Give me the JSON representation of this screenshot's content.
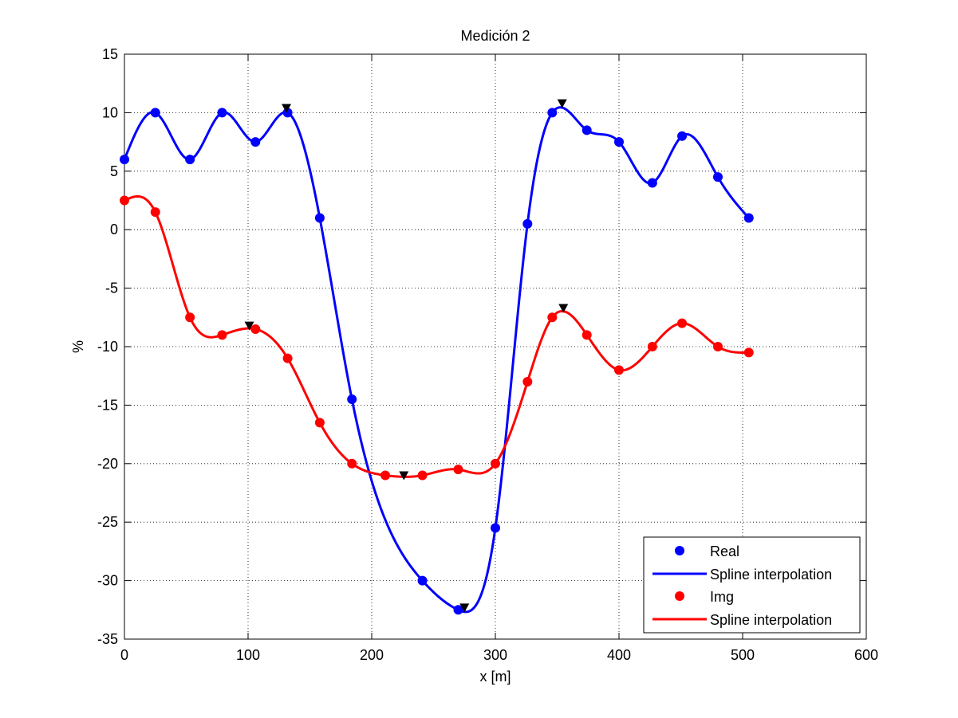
{
  "chart_data": {
    "type": "line",
    "title": "Medición 2",
    "xlabel": "x [m]",
    "ylabel": "%",
    "xlim": [
      0,
      600
    ],
    "ylim": [
      -35,
      15
    ],
    "xticks": [
      0,
      100,
      200,
      300,
      400,
      500,
      600
    ],
    "yticks": [
      -35,
      -30,
      -25,
      -20,
      -15,
      -10,
      -5,
      0,
      5,
      10,
      15
    ],
    "grid": true,
    "legend_position": "bottom-right",
    "colors": {
      "blue": "#0000ff",
      "red": "#ff0000",
      "marker_black": "#000000"
    },
    "series": [
      {
        "name": "Real",
        "kind": "markers",
        "color": "#0000ff",
        "points": [
          [
            0,
            6
          ],
          [
            25,
            10
          ],
          [
            53,
            6
          ],
          [
            79,
            10
          ],
          [
            106,
            7.5
          ],
          [
            132,
            10
          ],
          [
            158,
            1
          ],
          [
            184,
            -14.5
          ],
          [
            241,
            -30
          ],
          [
            270,
            -32.5
          ],
          [
            300,
            -25.5
          ],
          [
            326,
            0.5
          ],
          [
            346,
            10
          ],
          [
            374,
            8.5
          ],
          [
            400,
            7.5
          ],
          [
            427,
            4
          ],
          [
            451,
            8
          ],
          [
            480,
            4.5
          ],
          [
            505,
            1
          ]
        ]
      },
      {
        "name": "Spline interpolation",
        "kind": "spline",
        "color": "#0000ff",
        "points": [
          [
            0,
            6
          ],
          [
            25,
            10
          ],
          [
            53,
            6
          ],
          [
            79,
            10
          ],
          [
            106,
            7.5
          ],
          [
            132,
            10
          ],
          [
            158,
            1
          ],
          [
            184,
            -14.5
          ],
          [
            241,
            -30
          ],
          [
            270,
            -32.5
          ],
          [
            300,
            -25.5
          ],
          [
            326,
            0.5
          ],
          [
            346,
            10
          ],
          [
            374,
            8.5
          ],
          [
            400,
            7.5
          ],
          [
            427,
            4
          ],
          [
            451,
            8
          ],
          [
            480,
            4.5
          ],
          [
            505,
            1
          ]
        ]
      },
      {
        "name": "Img",
        "kind": "markers",
        "color": "#ff0000",
        "points": [
          [
            0,
            2.5
          ],
          [
            25,
            1.5
          ],
          [
            53,
            -7.5
          ],
          [
            79,
            -9
          ],
          [
            106,
            -8.5
          ],
          [
            132,
            -11
          ],
          [
            158,
            -16.5
          ],
          [
            184,
            -20
          ],
          [
            211,
            -21
          ],
          [
            241,
            -21
          ],
          [
            270,
            -20.5
          ],
          [
            300,
            -20
          ],
          [
            326,
            -13
          ],
          [
            346,
            -7.5
          ],
          [
            374,
            -9
          ],
          [
            400,
            -12
          ],
          [
            427,
            -10
          ],
          [
            451,
            -8
          ],
          [
            480,
            -10
          ],
          [
            505,
            -10.5
          ]
        ]
      },
      {
        "name": "Spline interpolation",
        "kind": "spline",
        "color": "#ff0000",
        "points": [
          [
            0,
            2.5
          ],
          [
            25,
            1.5
          ],
          [
            53,
            -7.5
          ],
          [
            79,
            -9
          ],
          [
            106,
            -8.5
          ],
          [
            132,
            -11
          ],
          [
            158,
            -16.5
          ],
          [
            184,
            -20
          ],
          [
            211,
            -21
          ],
          [
            241,
            -21
          ],
          [
            270,
            -20.5
          ],
          [
            300,
            -20
          ],
          [
            326,
            -13
          ],
          [
            346,
            -7.5
          ],
          [
            374,
            -9
          ],
          [
            400,
            -12
          ],
          [
            427,
            -10
          ],
          [
            451,
            -8
          ],
          [
            480,
            -10
          ],
          [
            505,
            -10.5
          ]
        ]
      }
    ],
    "extrema_markers": {
      "shape": "down-triangle",
      "color": "#000000",
      "points": [
        [
          131,
          10.4
        ],
        [
          354,
          10.8
        ],
        [
          275,
          -32.3
        ],
        [
          101,
          -8.2
        ],
        [
          226,
          -21
        ],
        [
          355,
          -6.7
        ]
      ]
    }
  }
}
